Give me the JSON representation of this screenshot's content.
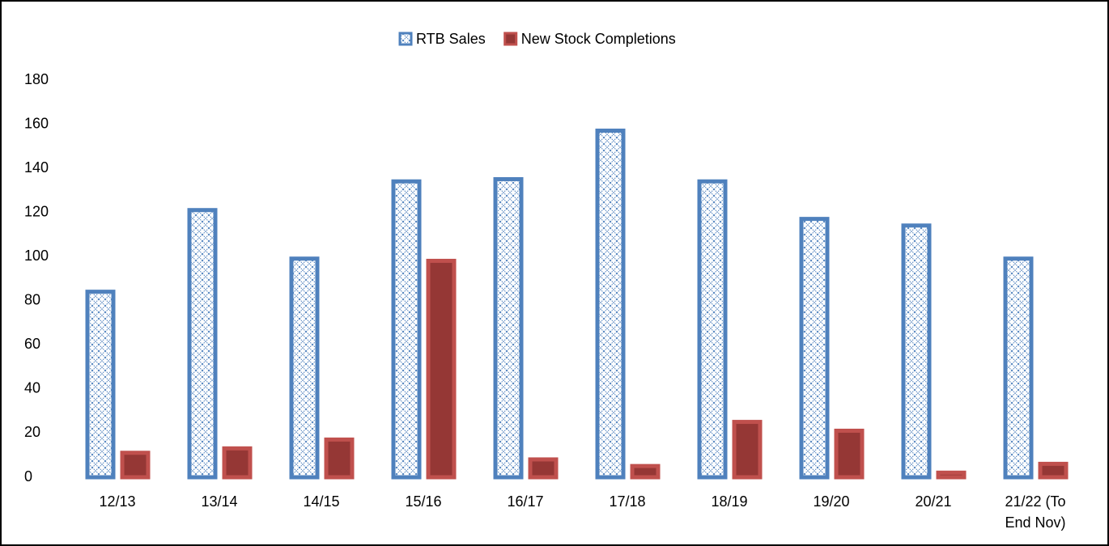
{
  "chart_data": {
    "type": "bar",
    "categories": [
      "12/13",
      "13/14",
      "14/15",
      "15/16",
      "16/17",
      "17/18",
      "18/19",
      "19/20",
      "20/21",
      "21/22 (To End Nov)"
    ],
    "series": [
      {
        "name": "RTB Sales",
        "color": "#4f81bd",
        "values": [
          85,
          122,
          100,
          135,
          136,
          158,
          135,
          118,
          115,
          100
        ]
      },
      {
        "name": "New Stock Completions",
        "color": "#c0504d",
        "values": [
          12,
          14,
          18,
          99,
          9,
          6,
          26,
          22,
          3,
          7
        ]
      }
    ],
    "ylim": [
      0,
      180
    ],
    "yticks": [
      0,
      20,
      40,
      60,
      80,
      100,
      120,
      140,
      160,
      180
    ],
    "grid": false,
    "legend": "top"
  }
}
